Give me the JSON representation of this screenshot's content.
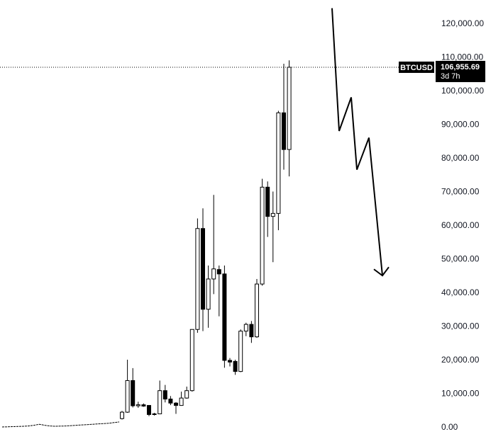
{
  "chart_data": {
    "type": "candlestick",
    "symbol": "BTCUSD",
    "interval": "monthly",
    "ylim": [
      0,
      120000
    ],
    "y_ticks": [
      0,
      10000,
      20000,
      30000,
      40000,
      50000,
      60000,
      70000,
      80000,
      90000,
      100000,
      110000,
      120000
    ],
    "y_tick_labels": [
      "0.00",
      "10,000.00",
      "20,000.00",
      "30,000.00",
      "40,000.00",
      "50,000.00",
      "60,000.00",
      "70,000.00",
      "80,000.00",
      "90,000.00",
      "100,000.00",
      "110,000.00",
      "120,000.00"
    ],
    "last_price": 106955.69,
    "last_price_label": "106,955.69",
    "countdown_label": "3d 7h",
    "grid": false,
    "colors": {
      "up_body": "#ffffff",
      "down_body": "#000000",
      "wick": "#000000",
      "tag_bg": "#000000"
    },
    "early_history_close": [
      0,
      50,
      100,
      150,
      200,
      300,
      500,
      800,
      500,
      300,
      200,
      250,
      300,
      400,
      500,
      600,
      700,
      800,
      900,
      1000,
      1100,
      1300,
      1500
    ],
    "candles": [
      {
        "o": 2500,
        "h": 4800,
        "l": 2200,
        "c": 4400
      },
      {
        "o": 4400,
        "h": 20000,
        "l": 4200,
        "c": 13800
      },
      {
        "o": 13800,
        "h": 17500,
        "l": 5800,
        "c": 6300
      },
      {
        "o": 6300,
        "h": 7500,
        "l": 5700,
        "c": 6600
      },
      {
        "o": 6600,
        "h": 7000,
        "l": 6000,
        "c": 6200
      },
      {
        "o": 6400,
        "h": 6500,
        "l": 3200,
        "c": 3700
      },
      {
        "o": 3700,
        "h": 4200,
        "l": 3400,
        "c": 3900
      },
      {
        "o": 3900,
        "h": 13800,
        "l": 3800,
        "c": 10800
      },
      {
        "o": 10800,
        "h": 12500,
        "l": 7300,
        "c": 8300
      },
      {
        "o": 8300,
        "h": 9200,
        "l": 6500,
        "c": 7100
      },
      {
        "o": 7100,
        "h": 7400,
        "l": 3900,
        "c": 6400
      },
      {
        "o": 6400,
        "h": 10500,
        "l": 6300,
        "c": 8600
      },
      {
        "o": 8600,
        "h": 12000,
        "l": 8400,
        "c": 10800
      },
      {
        "o": 10800,
        "h": 29000,
        "l": 10500,
        "c": 29000
      },
      {
        "o": 29000,
        "h": 62000,
        "l": 28000,
        "c": 59000
      },
      {
        "o": 59000,
        "h": 65000,
        "l": 28500,
        "c": 35000
      },
      {
        "o": 35000,
        "h": 48000,
        "l": 29500,
        "c": 44000
      },
      {
        "o": 44000,
        "h": 69000,
        "l": 39500,
        "c": 47000
      },
      {
        "o": 46800,
        "h": 48000,
        "l": 32900,
        "c": 45500
      },
      {
        "o": 45500,
        "h": 48000,
        "l": 17600,
        "c": 19800
      },
      {
        "o": 19800,
        "h": 20500,
        "l": 18000,
        "c": 19300
      },
      {
        "o": 19500,
        "h": 20000,
        "l": 15500,
        "c": 16500
      },
      {
        "o": 16500,
        "h": 29000,
        "l": 16300,
        "c": 28500
      },
      {
        "o": 28500,
        "h": 31000,
        "l": 27000,
        "c": 30500
      },
      {
        "o": 30500,
        "h": 31500,
        "l": 25000,
        "c": 26800
      },
      {
        "o": 26800,
        "h": 44000,
        "l": 26500,
        "c": 42500
      },
      {
        "o": 42500,
        "h": 73800,
        "l": 42000,
        "c": 71300
      },
      {
        "o": 71300,
        "h": 73000,
        "l": 56500,
        "c": 62600
      },
      {
        "o": 62600,
        "h": 70000,
        "l": 49000,
        "c": 63500
      },
      {
        "o": 63500,
        "h": 94000,
        "l": 58500,
        "c": 93400
      },
      {
        "o": 93400,
        "h": 108000,
        "l": 76500,
        "c": 82500
      },
      {
        "o": 82500,
        "h": 109000,
        "l": 74500,
        "c": 106955
      }
    ],
    "projection_path": [
      {
        "step": 0,
        "y": 124500
      },
      {
        "step": 1,
        "y": 88000
      },
      {
        "step": 2,
        "y": 98000
      },
      {
        "step": 3,
        "y": 76500
      },
      {
        "step": 4,
        "y": 86000
      },
      {
        "step": 5,
        "y": 45000
      }
    ]
  }
}
